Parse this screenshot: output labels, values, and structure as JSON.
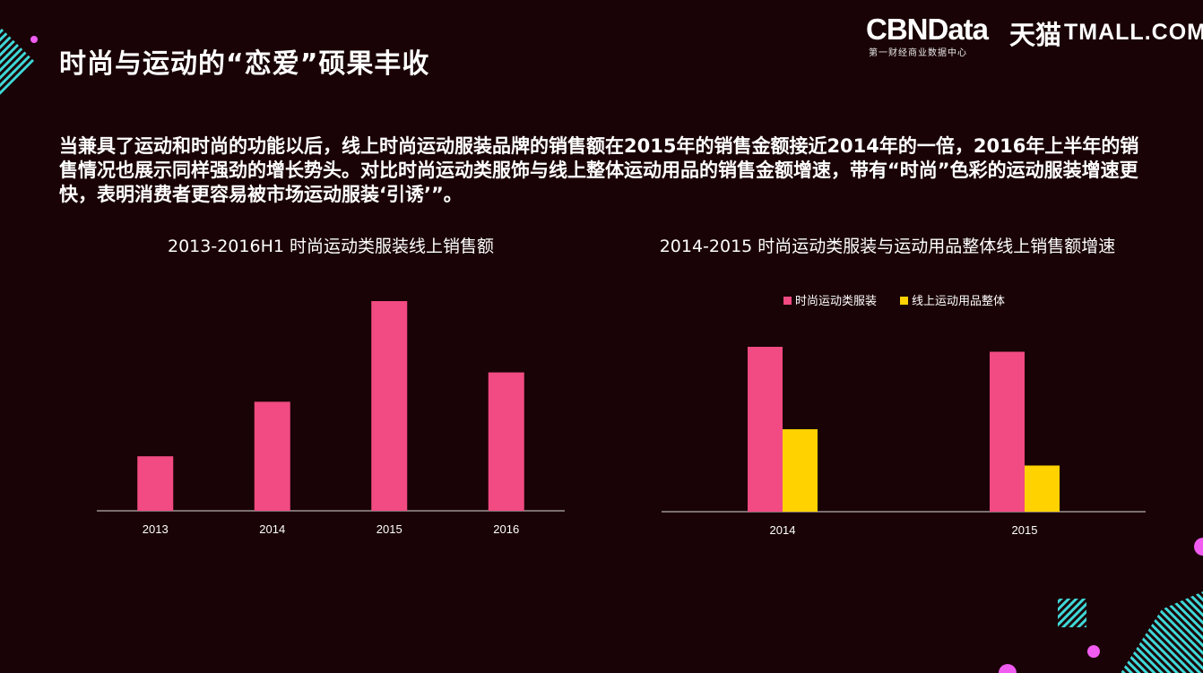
{
  "header": {
    "title": "时尚与运动的“恋爱”硕果丰收",
    "logo_cbn": "CBNData",
    "logo_cbn_sub": "第一财经商业数据中心",
    "logo_tmall_cn": "天猫",
    "logo_tmall_en": "TMALL.COM"
  },
  "body": {
    "text": "当兼具了运动和时尚的功能以后，线上时尚运动服装品牌的销售额在2015年的销售金额接近2014年的一倍，2016年上半年的销售情况也展示同样强劲的增长势头。对比时尚运动类服饰与线上整体运动用品的销售金额增速，带有“时尚”色彩的运动服装增速更快，表明消费者更容易被市场运动服装‘引诱’”。"
  },
  "colors": {
    "background": "#1a0306",
    "pink": "#f24a82",
    "yellow": "#ffd200",
    "cyan": "#3fd8d8",
    "magenta": "#f05cf0"
  },
  "chart_data": [
    {
      "type": "bar",
      "title": "2013-2016H1 时尚运动类服装线上销售额",
      "categories": [
        "2013",
        "2014",
        "2015",
        "2016"
      ],
      "values": [
        26,
        52,
        100,
        66
      ],
      "ylim": [
        0,
        100
      ],
      "xlabel": "",
      "ylabel": "",
      "grid": false,
      "color": "#f24a82"
    },
    {
      "type": "bar",
      "title": "2014-2015 时尚运动类服装与运动用品整体线上销售额增速",
      "categories": [
        "2014",
        "2015"
      ],
      "series": [
        {
          "name": "时尚运动类服装",
          "values": [
            100,
            97
          ],
          "color": "#f24a82"
        },
        {
          "name": "线上运动用品整体",
          "values": [
            50,
            28
          ],
          "color": "#ffd200"
        }
      ],
      "ylim": [
        0,
        100
      ],
      "legend": "top-center",
      "grid": false
    }
  ]
}
